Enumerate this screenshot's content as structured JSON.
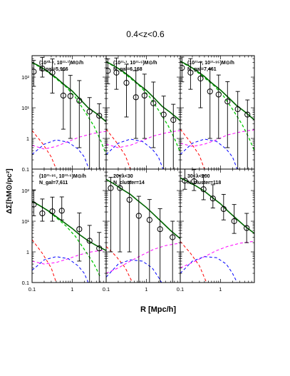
{
  "figure": {
    "title": "0.4<z<0.6",
    "ylabel": "ΔΣ[hM⊙/pc²]",
    "xlabel": "R [Mpc/h]",
    "xtick_labels": [
      "0.1",
      "1",
      "0.1",
      "1",
      "0.1",
      "1"
    ],
    "ytick_labels": [
      "0.1",
      "1",
      "10¹",
      "10²",
      "0.1",
      "1",
      "10¹",
      "10²"
    ]
  },
  "colors": {
    "total": "#006400",
    "one_halo": "#00c800",
    "miscentering": "#ff0000",
    "two_halo": "#ff00ff",
    "offset": "#0000ff",
    "data": "#000000"
  },
  "chart_data": [
    {
      "type": "scatter",
      "label_lines": [
        "(10¹⁰·⁸, 10¹¹·¹)M⊙/h",
        "N_gal=5,966"
      ],
      "xlim": [
        0.1,
        7
      ],
      "ylim": [
        0.1,
        500
      ],
      "xscale": "log",
      "yscale": "log",
      "x": [
        0.11,
        0.18,
        0.32,
        0.6,
        0.9,
        1.5,
        2.7,
        4.7
      ],
      "y": [
        150,
        190,
        140,
        25,
        24,
        17,
        7.5,
        5.5
      ],
      "yerr_low": [
        100,
        90,
        110,
        23,
        23,
        16.5,
        7.5,
        5.5
      ],
      "yerr_high": [
        200,
        250,
        250,
        140,
        90,
        60,
        14,
        8
      ],
      "model_total": [
        [
          0.1,
          300
        ],
        [
          0.15,
          230
        ],
        [
          0.25,
          150
        ],
        [
          0.4,
          95
        ],
        [
          0.6,
          60
        ],
        [
          1,
          35
        ],
        [
          1.5,
          20
        ],
        [
          2.5,
          10
        ],
        [
          4,
          6.5
        ],
        [
          7,
          3.5
        ]
      ],
      "model_one_halo": [
        [
          0.1,
          290
        ],
        [
          0.2,
          180
        ],
        [
          0.4,
          88
        ],
        [
          0.7,
          48
        ],
        [
          1.2,
          22
        ],
        [
          2,
          8
        ],
        [
          3.5,
          2.5
        ],
        [
          5,
          0.9
        ],
        [
          7,
          0.3
        ]
      ],
      "model_miscentering": [
        [
          0.1,
          1.8
        ],
        [
          0.18,
          0.7
        ],
        [
          0.3,
          0.25
        ],
        [
          0.4,
          0.1
        ]
      ],
      "model_two_halo": [
        [
          0.1,
          0.6
        ],
        [
          0.2,
          0.45
        ],
        [
          0.4,
          0.55
        ],
        [
          0.8,
          0.8
        ],
        [
          1.5,
          1.1
        ],
        [
          3,
          1.4
        ],
        [
          5,
          1.6
        ],
        [
          7,
          1.7
        ]
      ],
      "model_offset": [
        [
          0.1,
          0.3
        ],
        [
          0.2,
          0.65
        ],
        [
          0.4,
          0.9
        ],
        [
          0.8,
          0.75
        ],
        [
          1.4,
          0.45
        ],
        [
          2,
          0.25
        ],
        [
          2.6,
          0.1
        ]
      ]
    },
    {
      "type": "scatter",
      "label_lines": [
        "(10¹¹·¹, 10¹¹·⁶)M⊙/h",
        "N_gal=6,168"
      ],
      "xlim": [
        0.1,
        7
      ],
      "ylim": [
        0.1,
        500
      ],
      "xscale": "log",
      "yscale": "log",
      "x": [
        0.11,
        0.18,
        0.32,
        0.55,
        0.9,
        1.5,
        2.7,
        4.7
      ],
      "y": [
        160,
        140,
        65,
        22,
        25,
        14,
        6,
        4
      ],
      "yerr_low": [
        100,
        100,
        60,
        21,
        24,
        13.5,
        5.9,
        4
      ],
      "yerr_high": [
        230,
        280,
        200,
        140,
        100,
        55,
        18,
        9
      ],
      "model_total": [
        [
          0.1,
          320
        ],
        [
          0.15,
          240
        ],
        [
          0.25,
          160
        ],
        [
          0.4,
          100
        ],
        [
          0.6,
          62
        ],
        [
          1,
          37
        ],
        [
          1.5,
          22
        ],
        [
          2.5,
          11
        ],
        [
          4,
          7
        ],
        [
          7,
          3.8
        ]
      ],
      "model_one_halo": [
        [
          0.1,
          310
        ],
        [
          0.2,
          190
        ],
        [
          0.4,
          92
        ],
        [
          0.7,
          50
        ],
        [
          1.2,
          23
        ],
        [
          2,
          8.5
        ],
        [
          3.5,
          2.6
        ],
        [
          5,
          1
        ],
        [
          7,
          0.35
        ]
      ],
      "model_miscentering": [
        [
          0.1,
          2.0
        ],
        [
          0.18,
          0.75
        ],
        [
          0.3,
          0.28
        ],
        [
          0.4,
          0.1
        ]
      ],
      "model_two_halo": [
        [
          0.1,
          0.65
        ],
        [
          0.2,
          0.5
        ],
        [
          0.4,
          0.6
        ],
        [
          0.8,
          0.85
        ],
        [
          1.5,
          1.2
        ],
        [
          3,
          1.5
        ],
        [
          5,
          1.7
        ],
        [
          7,
          1.8
        ]
      ],
      "model_offset": [
        [
          0.1,
          0.3
        ],
        [
          0.2,
          0.7
        ],
        [
          0.4,
          0.95
        ],
        [
          0.8,
          0.8
        ],
        [
          1.4,
          0.45
        ],
        [
          2,
          0.25
        ],
        [
          2.6,
          0.1
        ]
      ]
    },
    {
      "type": "scatter",
      "label_lines": [
        "(10¹¹·⁶, 10¹¹·⁸⁵)M⊙/h",
        "N_gal=7,461"
      ],
      "xlim": [
        0.1,
        7
      ],
      "ylim": [
        0.1,
        500
      ],
      "xscale": "log",
      "yscale": "log",
      "x": [
        0.11,
        0.18,
        0.32,
        0.55,
        0.9,
        1.5,
        2.7,
        4.7
      ],
      "y": [
        200,
        140,
        90,
        34,
        27,
        16,
        9,
        6
      ],
      "yerr_low": [
        130,
        100,
        80,
        33,
        26,
        15.5,
        9,
        6
      ],
      "yerr_high": [
        250,
        260,
        220,
        150,
        90,
        55,
        25,
        12
      ],
      "model_total": [
        [
          0.1,
          330
        ],
        [
          0.15,
          250
        ],
        [
          0.25,
          165
        ],
        [
          0.4,
          105
        ],
        [
          0.6,
          65
        ],
        [
          1,
          38
        ],
        [
          1.5,
          23
        ],
        [
          2.5,
          12
        ],
        [
          4,
          7.5
        ],
        [
          7,
          4
        ]
      ],
      "model_one_halo": [
        [
          0.1,
          320
        ],
        [
          0.2,
          195
        ],
        [
          0.4,
          95
        ],
        [
          0.7,
          52
        ],
        [
          1.2,
          24
        ],
        [
          2,
          9
        ],
        [
          3.5,
          2.8
        ],
        [
          5,
          1.1
        ],
        [
          7,
          0.4
        ]
      ],
      "model_miscentering": [
        [
          0.1,
          2.0
        ],
        [
          0.18,
          0.75
        ],
        [
          0.3,
          0.28
        ],
        [
          0.4,
          0.1
        ]
      ],
      "model_two_halo": [
        [
          0.1,
          0.7
        ],
        [
          0.2,
          0.55
        ],
        [
          0.4,
          0.65
        ],
        [
          0.8,
          0.9
        ],
        [
          1.5,
          1.3
        ],
        [
          3,
          1.6
        ],
        [
          5,
          1.8
        ],
        [
          7,
          1.9
        ]
      ],
      "model_offset": [
        [
          0.1,
          0.3
        ],
        [
          0.2,
          0.7
        ],
        [
          0.4,
          0.95
        ],
        [
          0.8,
          0.8
        ],
        [
          1.4,
          0.45
        ],
        [
          2,
          0.25
        ],
        [
          2.6,
          0.1
        ]
      ]
    },
    {
      "type": "scatter",
      "label_lines": [
        "(10¹¹·⁸⁵, 10¹²·⁶)M⊙/h",
        "N_gal=7,611"
      ],
      "xlim": [
        0.1,
        7
      ],
      "ylim": [
        0.1,
        500
      ],
      "xscale": "log",
      "yscale": "log",
      "x": [
        0.11,
        0.18,
        0.32,
        0.55,
        1.5,
        2.7,
        4.7
      ],
      "y": [
        35,
        18,
        21,
        22,
        5.5,
        2.3,
        1.3
      ],
      "yerr_low": [
        20,
        8,
        11,
        11,
        5,
        2.2,
        1.25
      ],
      "yerr_high": [
        70,
        35,
        40,
        40,
        13,
        5,
        3
      ],
      "model_total": [
        [
          0.1,
          45
        ],
        [
          0.15,
          33
        ],
        [
          0.25,
          22
        ],
        [
          0.4,
          14
        ],
        [
          0.6,
          9.5
        ],
        [
          1,
          5.8
        ],
        [
          1.5,
          3.7
        ],
        [
          2.5,
          2.3
        ],
        [
          4,
          1.6
        ],
        [
          7,
          1.1
        ]
      ],
      "model_one_halo": [
        [
          0.1,
          44
        ],
        [
          0.2,
          27
        ],
        [
          0.4,
          13
        ],
        [
          0.7,
          7
        ],
        [
          1.2,
          3.2
        ],
        [
          2,
          1.2
        ],
        [
          3.5,
          0.4
        ],
        [
          5,
          0.15
        ]
      ],
      "model_miscentering": [
        [
          0.1,
          2.5
        ],
        [
          0.18,
          0.9
        ],
        [
          0.3,
          0.3
        ],
        [
          0.4,
          0.1
        ]
      ],
      "model_two_halo": [
        [
          0.1,
          0.5
        ],
        [
          0.2,
          0.4
        ],
        [
          0.4,
          0.45
        ],
        [
          0.8,
          0.6
        ],
        [
          1.5,
          0.8
        ],
        [
          3,
          1.0
        ],
        [
          5,
          1.1
        ],
        [
          7,
          1.15
        ]
      ],
      "model_offset": [
        [
          0.1,
          0.25
        ],
        [
          0.2,
          0.55
        ],
        [
          0.4,
          0.7
        ],
        [
          0.8,
          0.6
        ],
        [
          1.4,
          0.35
        ],
        [
          2,
          0.2
        ],
        [
          2.5,
          0.1
        ]
      ]
    },
    {
      "type": "scatter",
      "label_lines": [
        "20<λ<30",
        "N_cluster=14"
      ],
      "xlim": [
        0.1,
        7
      ],
      "ylim": [
        0.1,
        500
      ],
      "xscale": "log",
      "yscale": "log",
      "x": [
        0.13,
        0.22,
        0.38,
        0.65,
        1.2,
        2.2,
        4.5
      ],
      "y": [
        120,
        120,
        50,
        15,
        11,
        5.5,
        3
      ],
      "yerr_low": [
        119,
        119,
        49,
        14.9,
        10.9,
        5.4,
        2.9
      ],
      "yerr_high": [
        150,
        200,
        150,
        50,
        40,
        20,
        7
      ],
      "model_total": [
        [
          0.1,
          230
        ],
        [
          0.15,
          170
        ],
        [
          0.25,
          110
        ],
        [
          0.4,
          75
        ],
        [
          0.6,
          48
        ],
        [
          1,
          28
        ],
        [
          1.5,
          17
        ],
        [
          2.5,
          9
        ],
        [
          4,
          5
        ],
        [
          7,
          2.7
        ]
      ],
      "model_miscentering": [
        [
          0.1,
          1.5
        ],
        [
          0.18,
          0.7
        ],
        [
          0.3,
          0.3
        ],
        [
          0.45,
          0.1
        ]
      ],
      "model_two_halo": [
        [
          0.1,
          0.2
        ],
        [
          0.2,
          0.3
        ],
        [
          0.4,
          0.5
        ],
        [
          0.8,
          0.8
        ],
        [
          1.5,
          1.2
        ],
        [
          3,
          1.6
        ],
        [
          5,
          1.8
        ],
        [
          7,
          1.9
        ]
      ],
      "model_offset": [
        [
          0.1,
          0.15
        ],
        [
          0.2,
          0.4
        ],
        [
          0.4,
          0.55
        ],
        [
          0.8,
          0.5
        ],
        [
          1.4,
          0.3
        ],
        [
          2,
          0.15
        ],
        [
          2.4,
          0.1
        ]
      ]
    },
    {
      "type": "scatter",
      "label_lines": [
        "30<λ<200",
        "N_cluster=118"
      ],
      "xlim": [
        0.1,
        7
      ],
      "ylim": [
        0.1,
        500
      ],
      "xscale": "log",
      "yscale": "log",
      "x": [
        0.13,
        0.22,
        0.38,
        0.65,
        1.2,
        2.2,
        4.5
      ],
      "y": [
        210,
        200,
        110,
        55,
        25,
        10,
        6
      ],
      "yerr_low": [
        100,
        100,
        60,
        28,
        14,
        6,
        4
      ],
      "yerr_high": [
        300,
        280,
        200,
        100,
        50,
        25,
        12
      ],
      "model_total": [
        [
          0.1,
          260
        ],
        [
          0.15,
          200
        ],
        [
          0.25,
          140
        ],
        [
          0.4,
          95
        ],
        [
          0.6,
          62
        ],
        [
          1,
          37
        ],
        [
          1.5,
          22
        ],
        [
          2.5,
          12
        ],
        [
          4,
          7
        ],
        [
          7,
          4
        ]
      ],
      "model_miscentering": [
        [
          0.1,
          2.2
        ],
        [
          0.18,
          0.9
        ],
        [
          0.3,
          0.35
        ],
        [
          0.45,
          0.1
        ]
      ],
      "model_two_halo": [
        [
          0.1,
          0.3
        ],
        [
          0.2,
          0.45
        ],
        [
          0.4,
          0.7
        ],
        [
          0.8,
          1.1
        ],
        [
          1.5,
          1.5
        ],
        [
          3,
          1.9
        ],
        [
          5,
          2.1
        ],
        [
          7,
          2.2
        ]
      ],
      "model_offset": [
        [
          0.1,
          0.2
        ],
        [
          0.2,
          0.5
        ],
        [
          0.4,
          0.7
        ],
        [
          0.8,
          0.65
        ],
        [
          1.4,
          0.4
        ],
        [
          2,
          0.2
        ],
        [
          2.6,
          0.1
        ]
      ]
    }
  ]
}
